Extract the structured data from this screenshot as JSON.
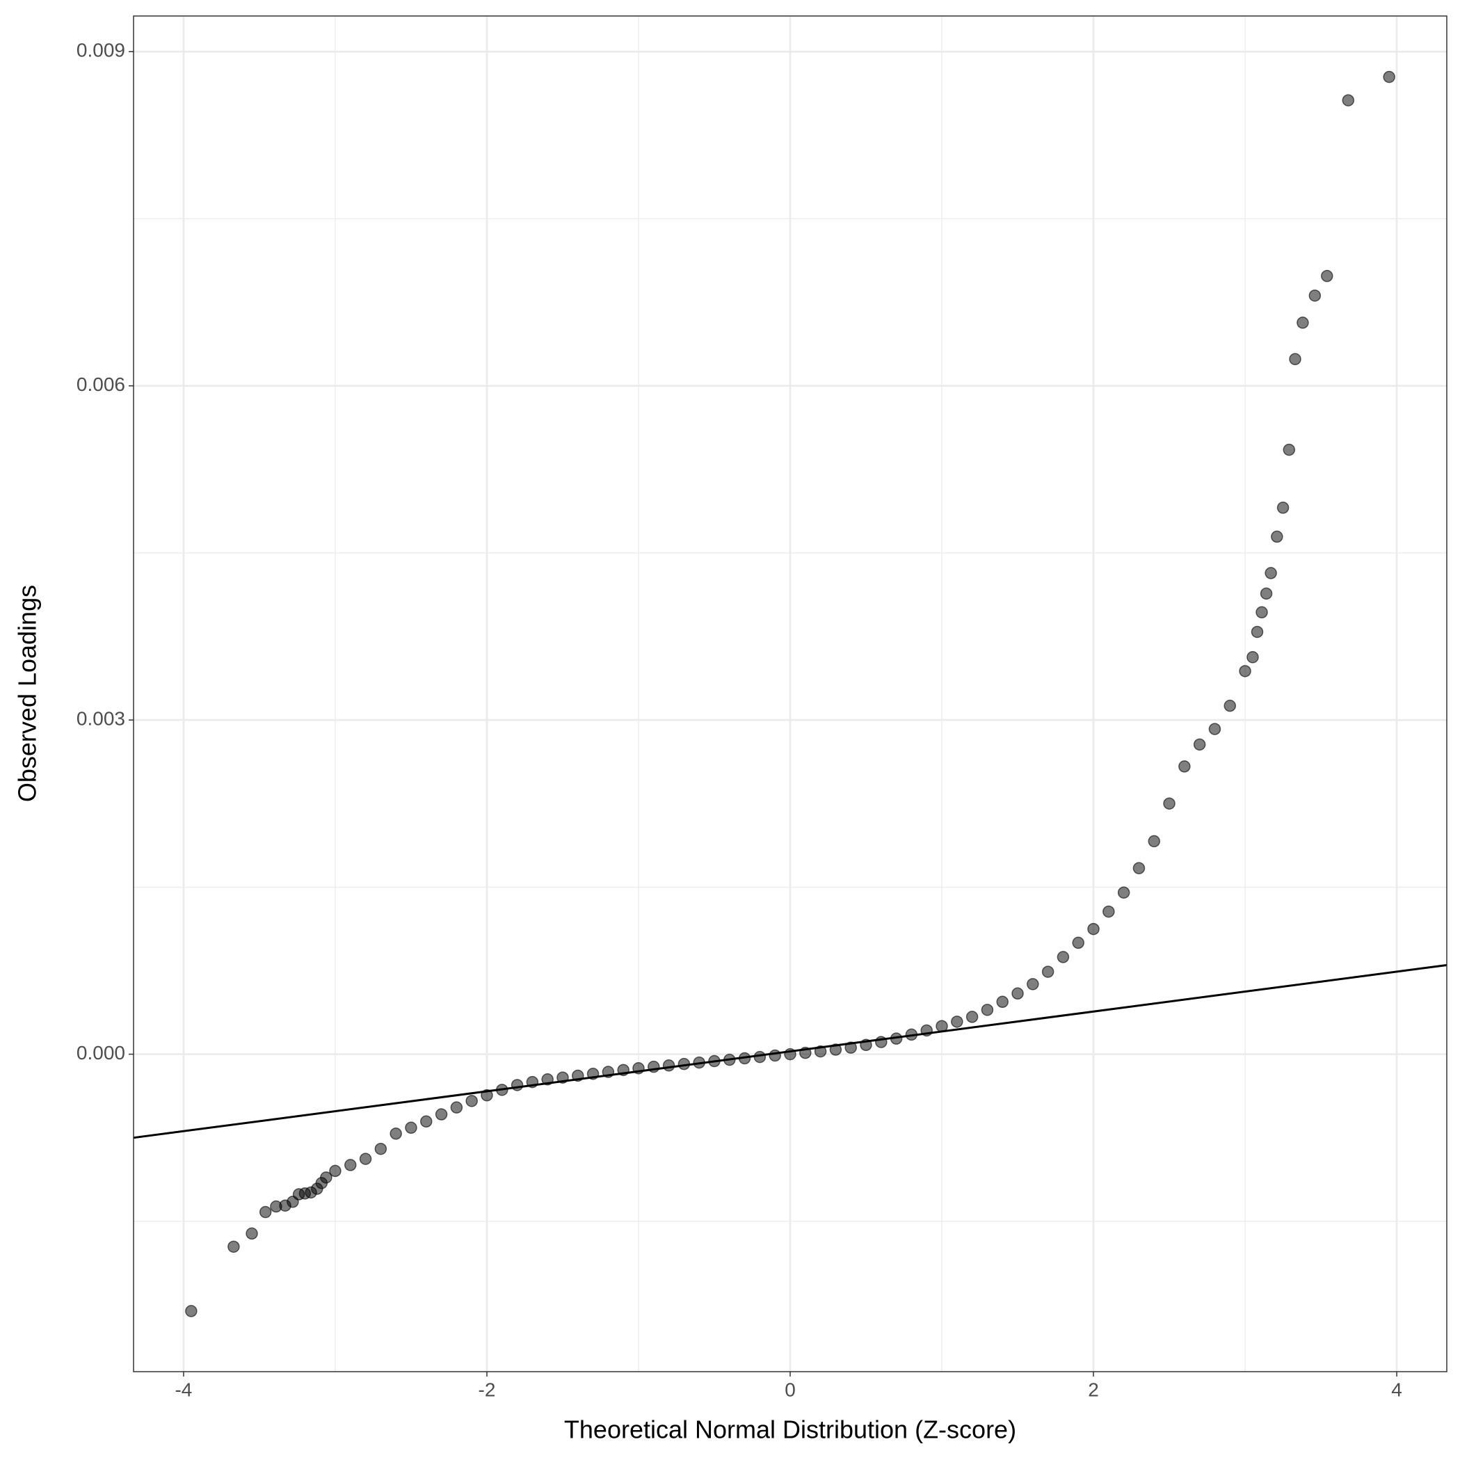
{
  "chart_data": {
    "type": "scatter",
    "xlabel": "Theoretical Normal Distribution (Z-score)",
    "ylabel": "Observed Loadings",
    "xlim": [
      -4.33,
      4.33
    ],
    "ylim": [
      -0.00285,
      0.00932
    ],
    "xticks": [
      -4,
      -2,
      0,
      2,
      4
    ],
    "yticks": [
      {
        "value": 0,
        "label": "0.000"
      },
      0.003,
      0.006,
      0.009
    ],
    "grid": true,
    "color": "#000000",
    "x": [
      -3.95,
      -3.67,
      -3.55,
      -3.46,
      -3.39,
      -3.33,
      -3.28,
      -3.24,
      -3.2,
      -3.16,
      -3.12,
      -3.09,
      -3.06,
      -3.0,
      -2.9,
      -2.8,
      -2.7,
      -2.6,
      -2.5,
      -2.4,
      -2.3,
      -2.2,
      -2.1,
      -2.0,
      -1.9,
      -1.8,
      -1.7,
      -1.6,
      -1.5,
      -1.4,
      -1.3,
      -1.2,
      -1.1,
      -1.0,
      -0.9,
      -0.8,
      -0.7,
      -0.6,
      -0.5,
      -0.4,
      -0.3,
      -0.2,
      -0.1,
      0,
      0.1,
      0.2,
      0.3,
      0.4,
      0.5,
      0.6,
      0.7,
      0.8,
      0.9,
      1.0,
      1.1,
      1.2,
      1.3,
      1.4,
      1.5,
      1.6,
      1.7,
      1.8,
      1.9,
      2.0,
      2.1,
      2.2,
      2.3,
      2.4,
      2.5,
      2.6,
      2.7,
      2.8,
      2.9,
      3.0,
      3.05,
      3.08,
      3.11,
      3.14,
      3.17,
      3.21,
      3.25,
      3.29,
      3.33,
      3.38,
      3.46,
      3.54,
      3.68,
      3.95
    ],
    "y": [
      -0.002306,
      -0.001728,
      -0.00161,
      -0.001417,
      -0.001367,
      -0.001359,
      -0.001325,
      -0.001258,
      -0.00125,
      -0.001241,
      -0.001208,
      -0.001157,
      -0.001107,
      -0.001048,
      -0.000995,
      -0.00094,
      -0.00085,
      -0.000713,
      -0.00066,
      -0.000604,
      -0.00054,
      -0.000478,
      -0.00042,
      -0.000369,
      -0.00032,
      -0.000277,
      -0.00025,
      -0.000226,
      -0.00021,
      -0.000193,
      -0.000176,
      -0.000159,
      -0.000142,
      -0.000126,
      -0.000113,
      -0.000101,
      -8.8e-05,
      -7.5e-05,
      -6.2e-05,
      -5e-05,
      -3.7e-05,
      -2.5e-05,
      -1.2e-05,
      0,
      1.2e-05,
      2.5e-05,
      4.1e-05,
      5.9e-05,
      8.3e-05,
      0.000109,
      0.00014,
      0.000176,
      0.000213,
      0.000252,
      0.000292,
      0.000335,
      0.000398,
      0.00047,
      0.000545,
      0.000629,
      0.00074,
      0.000872,
      0.001,
      0.001124,
      0.00128,
      0.001451,
      0.00167,
      0.001912,
      0.00225,
      0.002583,
      0.00278,
      0.002919,
      0.003128,
      0.003439,
      0.003564,
      0.003791,
      0.003967,
      0.004135,
      0.004319,
      0.004646,
      0.004906,
      0.005426,
      0.00624,
      0.006567,
      0.00681,
      0.006986,
      0.008563,
      0.008773
    ],
    "line": {
      "x": [
        -4.33,
        4.33
      ],
      "y": [
        -0.00075,
        0.0008
      ]
    }
  }
}
